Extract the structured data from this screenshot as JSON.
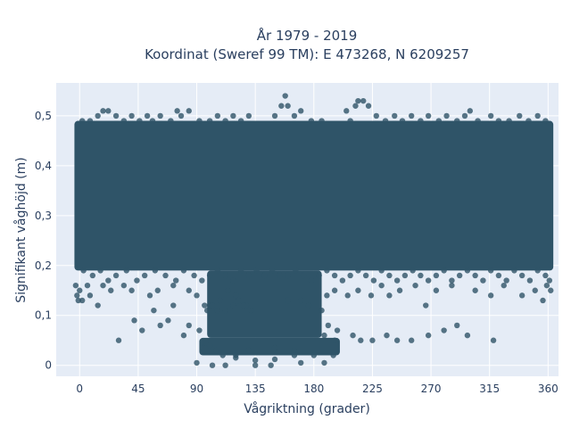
{
  "chart_data": {
    "type": "scatter",
    "title_lines": [
      "År 1979 - 2019",
      "Koordinat (Sweref 99 TM): E 473268, N 6209257"
    ],
    "xlabel": "Vågriktning (grader)",
    "ylabel": "Signifikant våghöjd (m)",
    "xlim": [
      -18,
      368
    ],
    "ylim": [
      -0.022,
      0.566
    ],
    "xticks": [
      0,
      45,
      90,
      135,
      180,
      225,
      270,
      315,
      360
    ],
    "xtick_labels": [
      "0",
      "45",
      "90",
      "135",
      "180",
      "225",
      "270",
      "315",
      "360"
    ],
    "yticks": [
      0,
      0.1,
      0.2,
      0.3,
      0.4,
      0.5
    ],
    "ytick_labels": [
      "0",
      "0,1",
      "0,2",
      "0,3",
      "0,4",
      "0,5"
    ],
    "grid": true,
    "colors": {
      "background": "#e5ecf6",
      "grid": "#ffffff",
      "marker": "#2f5468",
      "text": "#2a3f5f"
    },
    "series": [
      {
        "points": [
          [
            80,
            0.06
          ],
          [
            95,
            0.035
          ],
          [
            110,
            0.02
          ],
          [
            120,
            0.015
          ],
          [
            135,
            0.01
          ],
          [
            150,
            0.012
          ],
          [
            165,
            0.02
          ],
          [
            180,
            0.02
          ],
          [
            195,
            0.02
          ],
          [
            84,
            0.08
          ],
          [
            92,
            0.07
          ],
          [
            100,
            0.04
          ],
          [
            105,
            0.03
          ],
          [
            120,
            0.02
          ],
          [
            130,
            0.03
          ],
          [
            150,
            0.035
          ],
          [
            165,
            0.03
          ],
          [
            188,
            0.06
          ],
          [
            196,
            0.05
          ],
          [
            90,
            0.005
          ],
          [
            102,
            0.0
          ],
          [
            112,
            0.0
          ],
          [
            135,
            0.0
          ],
          [
            147,
            0.0
          ],
          [
            170,
            0.005
          ],
          [
            188,
            0.005
          ],
          [
            98,
            0.11
          ],
          [
            100,
            0.12
          ],
          [
            106,
            0.11
          ],
          [
            112,
            0.11
          ],
          [
            118,
            0.12
          ],
          [
            122,
            0.13
          ],
          [
            128,
            0.12
          ],
          [
            132,
            0.11
          ],
          [
            160,
            0.13
          ],
          [
            170,
            0.13
          ],
          [
            176,
            0.12
          ],
          [
            186,
            0.11
          ],
          [
            191,
            0.08
          ],
          [
            198,
            0.07
          ],
          [
            210,
            0.06
          ],
          [
            216,
            0.05
          ],
          [
            225,
            0.05
          ],
          [
            236,
            0.06
          ],
          [
            244,
            0.05
          ],
          [
            255,
            0.05
          ],
          [
            268,
            0.06
          ],
          [
            280,
            0.07
          ],
          [
            290,
            0.08
          ],
          [
            298,
            0.06
          ],
          [
            318,
            0.05
          ],
          [
            30,
            0.05
          ],
          [
            42,
            0.09
          ],
          [
            48,
            0.07
          ],
          [
            57,
            0.11
          ],
          [
            62,
            0.08
          ],
          [
            68,
            0.09
          ],
          [
            72,
            0.12
          ],
          [
            0,
            0.15
          ],
          [
            2,
            0.13
          ],
          [
            6,
            0.16
          ],
          [
            8,
            0.14
          ],
          [
            14,
            0.12
          ],
          [
            18,
            0.16
          ],
          [
            24,
            0.15
          ],
          [
            34,
            0.16
          ],
          [
            40,
            0.15
          ],
          [
            54,
            0.14
          ],
          [
            60,
            0.15
          ],
          [
            72,
            0.16
          ],
          [
            84,
            0.15
          ],
          [
            90,
            0.14
          ],
          [
            96,
            0.12
          ],
          [
            102,
            0.12
          ],
          [
            108,
            0.13
          ],
          [
            114,
            0.15
          ],
          [
            120,
            0.14
          ],
          [
            126,
            0.12
          ],
          [
            190,
            0.14
          ],
          [
            196,
            0.15
          ],
          [
            206,
            0.14
          ],
          [
            214,
            0.15
          ],
          [
            224,
            0.14
          ],
          [
            232,
            0.16
          ],
          [
            238,
            0.14
          ],
          [
            246,
            0.15
          ],
          [
            258,
            0.16
          ],
          [
            266,
            0.12
          ],
          [
            274,
            0.15
          ],
          [
            286,
            0.16
          ],
          [
            304,
            0.15
          ],
          [
            316,
            0.14
          ],
          [
            326,
            0.16
          ],
          [
            340,
            0.14
          ],
          [
            350,
            0.15
          ],
          [
            356,
            0.13
          ],
          [
            3,
            0.19
          ],
          [
            10,
            0.18
          ],
          [
            16,
            0.19
          ],
          [
            22,
            0.17
          ],
          [
            28,
            0.18
          ],
          [
            36,
            0.19
          ],
          [
            44,
            0.17
          ],
          [
            50,
            0.18
          ],
          [
            58,
            0.19
          ],
          [
            66,
            0.18
          ],
          [
            74,
            0.17
          ],
          [
            80,
            0.19
          ],
          [
            88,
            0.18
          ],
          [
            94,
            0.17
          ],
          [
            100,
            0.18
          ],
          [
            106,
            0.19
          ],
          [
            112,
            0.18
          ],
          [
            118,
            0.17
          ],
          [
            124,
            0.19
          ],
          [
            130,
            0.18
          ],
          [
            136,
            0.19
          ],
          [
            142,
            0.18
          ],
          [
            148,
            0.19
          ],
          [
            154,
            0.18
          ],
          [
            160,
            0.18
          ],
          [
            166,
            0.19
          ],
          [
            172,
            0.18
          ],
          [
            178,
            0.17
          ],
          [
            184,
            0.18
          ],
          [
            190,
            0.19
          ],
          [
            196,
            0.18
          ],
          [
            202,
            0.17
          ],
          [
            208,
            0.18
          ],
          [
            214,
            0.19
          ],
          [
            220,
            0.18
          ],
          [
            226,
            0.17
          ],
          [
            232,
            0.19
          ],
          [
            238,
            0.18
          ],
          [
            244,
            0.17
          ],
          [
            250,
            0.18
          ],
          [
            256,
            0.19
          ],
          [
            262,
            0.18
          ],
          [
            268,
            0.17
          ],
          [
            274,
            0.18
          ],
          [
            280,
            0.19
          ],
          [
            286,
            0.17
          ],
          [
            292,
            0.18
          ],
          [
            298,
            0.19
          ],
          [
            304,
            0.18
          ],
          [
            310,
            0.17
          ],
          [
            316,
            0.19
          ],
          [
            322,
            0.18
          ],
          [
            328,
            0.17
          ],
          [
            334,
            0.19
          ],
          [
            340,
            0.18
          ],
          [
            346,
            0.17
          ],
          [
            352,
            0.19
          ],
          [
            358,
            0.18
          ],
          [
            2,
            0.49
          ],
          [
            8,
            0.49
          ],
          [
            14,
            0.5
          ],
          [
            18,
            0.51
          ],
          [
            22,
            0.51
          ],
          [
            28,
            0.5
          ],
          [
            34,
            0.49
          ],
          [
            40,
            0.5
          ],
          [
            46,
            0.49
          ],
          [
            52,
            0.5
          ],
          [
            56,
            0.49
          ],
          [
            62,
            0.5
          ],
          [
            70,
            0.49
          ],
          [
            75,
            0.51
          ],
          [
            78,
            0.5
          ],
          [
            84,
            0.51
          ],
          [
            92,
            0.49
          ],
          [
            100,
            0.49
          ],
          [
            106,
            0.5
          ],
          [
            112,
            0.49
          ],
          [
            118,
            0.5
          ],
          [
            124,
            0.49
          ],
          [
            130,
            0.5
          ],
          [
            150,
            0.5
          ],
          [
            155,
            0.52
          ],
          [
            158,
            0.54
          ],
          [
            160,
            0.52
          ],
          [
            165,
            0.5
          ],
          [
            170,
            0.51
          ],
          [
            178,
            0.49
          ],
          [
            186,
            0.49
          ],
          [
            205,
            0.51
          ],
          [
            208,
            0.49
          ],
          [
            212,
            0.52
          ],
          [
            214,
            0.53
          ],
          [
            218,
            0.53
          ],
          [
            222,
            0.52
          ],
          [
            228,
            0.5
          ],
          [
            235,
            0.49
          ],
          [
            242,
            0.5
          ],
          [
            248,
            0.49
          ],
          [
            255,
            0.5
          ],
          [
            262,
            0.49
          ],
          [
            268,
            0.5
          ],
          [
            276,
            0.49
          ],
          [
            282,
            0.5
          ],
          [
            290,
            0.49
          ],
          [
            296,
            0.5
          ],
          [
            300,
            0.51
          ],
          [
            306,
            0.49
          ],
          [
            316,
            0.5
          ],
          [
            322,
            0.49
          ],
          [
            330,
            0.49
          ],
          [
            338,
            0.5
          ],
          [
            345,
            0.49
          ],
          [
            352,
            0.5
          ],
          [
            358,
            0.49
          ],
          [
            -2,
            0.14
          ],
          [
            -3,
            0.16
          ],
          [
            -1,
            0.13
          ],
          [
            361,
            0.17
          ],
          [
            362,
            0.15
          ],
          [
            359,
            0.16
          ]
        ],
        "dense_regions": [
          {
            "x": [
              -4,
              364
            ],
            "y": [
              0.19,
              0.49
            ]
          },
          {
            "x": [
              98,
              186
            ],
            "y": [
              0.055,
              0.19
            ]
          },
          {
            "x": [
              92,
              200
            ],
            "y": [
              0.02,
              0.055
            ]
          }
        ]
      }
    ]
  }
}
